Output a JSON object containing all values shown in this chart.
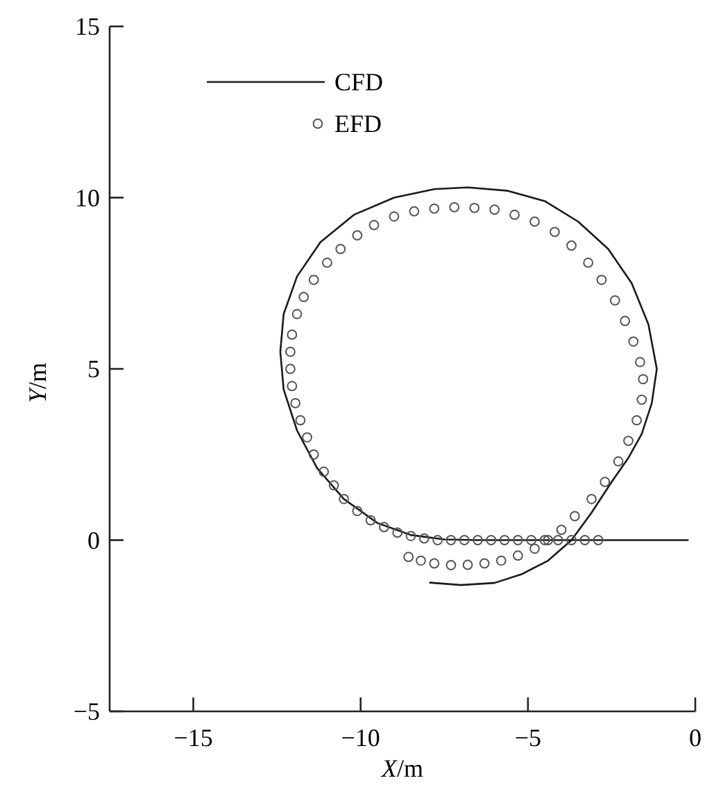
{
  "chart_data": {
    "type": "line",
    "xlabel": "X/m",
    "ylabel": "Y/m",
    "xlim": [
      -17.5,
      0
    ],
    "xticks": [
      {
        "value": -15,
        "label": "−15"
      },
      {
        "value": -10,
        "label": "−10"
      },
      {
        "value": -5,
        "label": "−5"
      },
      0
    ],
    "ylim": [
      -5,
      15
    ],
    "yticks": [
      {
        "value": -5,
        "label": "−5"
      },
      0,
      5,
      10,
      15
    ],
    "grid": false,
    "legend": "top left",
    "series": [
      {
        "name": "CFD",
        "color": "#1a1a1a",
        "marker": "none",
        "line_style": "solid",
        "x": [
          -0.2,
          -3,
          -5,
          -6.5,
          -7.5,
          -8.5,
          -9.5,
          -10.5,
          -11.3,
          -11.9,
          -12.3,
          -12.4,
          -12.3,
          -11.9,
          -11.2,
          -10.2,
          -9,
          -7.8,
          -6.8,
          -5.6,
          -4.5,
          -3.5,
          -2.6,
          -1.9,
          -1.4,
          -1.15,
          -1.3,
          -1.6,
          -2,
          -2.5,
          -3.1,
          -3.7,
          -4.4,
          -5.2,
          -6,
          -7,
          -7.95
        ],
        "values": [
          0,
          0,
          0,
          0,
          0.02,
          0.15,
          0.5,
          1.2,
          2.1,
          3.2,
          4.4,
          5.5,
          6.6,
          7.7,
          8.7,
          9.5,
          10,
          10.25,
          10.3,
          10.2,
          9.9,
          9.3,
          8.5,
          7.5,
          6.3,
          5,
          4,
          3.1,
          2.4,
          1.7,
          0.8,
          0,
          -0.6,
          -1,
          -1.25,
          -1.31,
          -1.24
        ]
      },
      {
        "name": "EFD",
        "type": "scatter",
        "color": "#555555",
        "marker": "circle",
        "x": [
          -2.9,
          -3.3,
          -3.7,
          -4.1,
          -4.5,
          -4.9,
          -5.3,
          -5.7,
          -6.1,
          -6.5,
          -6.9,
          -7.3,
          -7.7,
          -8.1,
          -8.5,
          -8.9,
          -9.3,
          -9.7,
          -10.1,
          -10.5,
          -10.8,
          -11.1,
          -11.4,
          -11.6,
          -11.8,
          -11.95,
          -12.05,
          -12.1,
          -12.1,
          -12.05,
          -11.9,
          -11.7,
          -11.4,
          -11,
          -10.6,
          -10.1,
          -9.6,
          -9,
          -8.4,
          -7.8,
          -7.2,
          -6.6,
          -6,
          -5.4,
          -4.8,
          -4.2,
          -3.7,
          -3.2,
          -2.8,
          -2.4,
          -2.1,
          -1.85,
          -1.65,
          -1.56,
          -1.6,
          -1.75,
          -2,
          -2.3,
          -2.7,
          -3.1,
          -3.6,
          -4,
          -4.4,
          -4.8,
          -5.3,
          -5.8,
          -6.3,
          -6.8,
          -7.3,
          -7.8,
          -8.2,
          -8.57
        ],
        "values": [
          0,
          0,
          0,
          0,
          0,
          0,
          0,
          0,
          0,
          0,
          0,
          0,
          0,
          0.05,
          0.12,
          0.22,
          0.38,
          0.58,
          0.85,
          1.2,
          1.6,
          2,
          2.5,
          3,
          3.5,
          4,
          4.5,
          5,
          5.5,
          6,
          6.6,
          7.1,
          7.6,
          8.1,
          8.5,
          8.9,
          9.2,
          9.45,
          9.6,
          9.68,
          9.72,
          9.7,
          9.65,
          9.5,
          9.3,
          9,
          8.6,
          8.1,
          7.6,
          7,
          6.4,
          5.8,
          5.2,
          4.7,
          4.1,
          3.5,
          2.9,
          2.3,
          1.7,
          1.2,
          0.7,
          0.3,
          0,
          -0.25,
          -0.45,
          -0.6,
          -0.68,
          -0.72,
          -0.73,
          -0.68,
          -0.6,
          -0.49
        ]
      }
    ]
  }
}
